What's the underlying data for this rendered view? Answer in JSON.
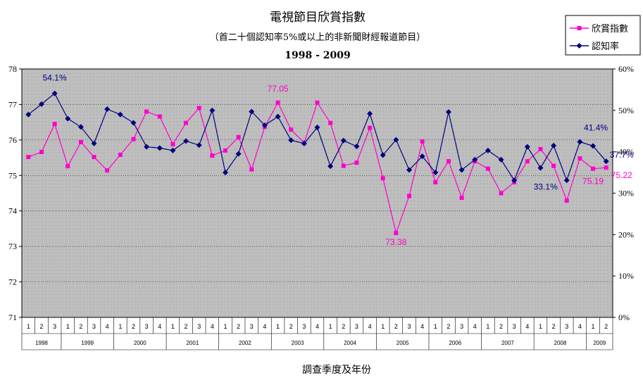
{
  "chart_data": {
    "type": "line",
    "title": "電視節目欣賞指數",
    "subtitle": "（首二十個認知率5%或以上的非新聞財經報道節目）",
    "period": "1998 - 2009",
    "xlabel": "調查季度及年份",
    "y_left": {
      "ticks": [
        "71",
        "72",
        "73",
        "74",
        "75",
        "76",
        "77",
        "78"
      ],
      "ylim": [
        71,
        78
      ]
    },
    "y_right": {
      "ticks": [
        "0%",
        "10%",
        "20%",
        "30%",
        "40%",
        "50%",
        "60%"
      ],
      "ylim": [
        0,
        60
      ]
    },
    "years": [
      {
        "label": "1998",
        "quarters": [
          "1",
          "2",
          "3"
        ]
      },
      {
        "label": "1999",
        "quarters": [
          "1",
          "2",
          "3",
          "4"
        ]
      },
      {
        "label": "2000",
        "quarters": [
          "1",
          "2",
          "3",
          "4"
        ]
      },
      {
        "label": "2001",
        "quarters": [
          "1",
          "2",
          "3",
          "4"
        ]
      },
      {
        "label": "2002",
        "quarters": [
          "1",
          "2",
          "3",
          "4"
        ]
      },
      {
        "label": "2003",
        "quarters": [
          "1",
          "2",
          "3",
          "4"
        ]
      },
      {
        "label": "2004",
        "quarters": [
          "1",
          "2",
          "3",
          "4"
        ]
      },
      {
        "label": "2005",
        "quarters": [
          "1",
          "2",
          "3",
          "4"
        ]
      },
      {
        "label": "2006",
        "quarters": [
          "1",
          "2",
          "3",
          "4"
        ]
      },
      {
        "label": "2007",
        "quarters": [
          "1",
          "2",
          "3",
          "4"
        ]
      },
      {
        "label": "2008",
        "quarters": [
          "1",
          "2",
          "3",
          "4"
        ]
      },
      {
        "label": "2009",
        "quarters": [
          "1",
          "2"
        ]
      }
    ],
    "series": [
      {
        "name": "欣賞指數",
        "axis": "left",
        "color": "#ff00cc",
        "marker": "square",
        "values": [
          75.52,
          75.66,
          76.45,
          75.26,
          75.94,
          75.52,
          75.14,
          75.58,
          76.02,
          76.8,
          76.66,
          75.88,
          76.48,
          76.9,
          75.56,
          75.7,
          76.08,
          75.17,
          76.37,
          77.05,
          76.29,
          75.92,
          77.05,
          76.48,
          75.27,
          75.36,
          76.34,
          74.92,
          73.38,
          74.42,
          75.96,
          74.81,
          75.4,
          74.37,
          75.4,
          75.19,
          74.5,
          74.81,
          75.4,
          75.74,
          75.27,
          74.29,
          75.48,
          75.19,
          75.22
        ]
      },
      {
        "name": "認知率",
        "axis": "right",
        "color": "#000080",
        "marker": "diamond",
        "values": [
          49.0,
          51.5,
          54.1,
          48.0,
          46.0,
          42.0,
          50.3,
          49.0,
          47.0,
          41.2,
          40.9,
          40.3,
          42.6,
          41.6,
          50.0,
          35.0,
          39.5,
          49.7,
          46.4,
          48.5,
          42.8,
          42.0,
          45.9,
          36.5,
          42.7,
          41.3,
          49.2,
          39.2,
          42.9,
          35.6,
          38.9,
          35.0,
          49.6,
          35.6,
          38.1,
          40.3,
          38.1,
          33.1,
          41.2,
          36.1,
          41.5,
          33.1,
          42.4,
          41.4,
          37.7
        ]
      }
    ],
    "annotations": [
      {
        "text": "54.1%",
        "series": "認知率",
        "index": 2
      },
      {
        "text": "77.05",
        "series": "欣賞指數",
        "index": 19
      },
      {
        "text": "73.38",
        "series": "欣賞指數",
        "index": 28
      },
      {
        "text": "33.1%",
        "series": "認知率",
        "index": 41
      },
      {
        "text": "75.19",
        "series": "欣賞指數",
        "index": 43
      },
      {
        "text": "41.4%",
        "series": "認知率",
        "index": 43
      },
      {
        "text": "37.7%",
        "series": "認知率",
        "index": 44
      },
      {
        "text": "75.22",
        "series": "欣賞指數",
        "index": 44
      }
    ],
    "legend": {
      "position": "top-right",
      "entries": [
        "欣賞指數",
        "認知率"
      ]
    },
    "grid": true,
    "background": "#c0c0c0"
  }
}
